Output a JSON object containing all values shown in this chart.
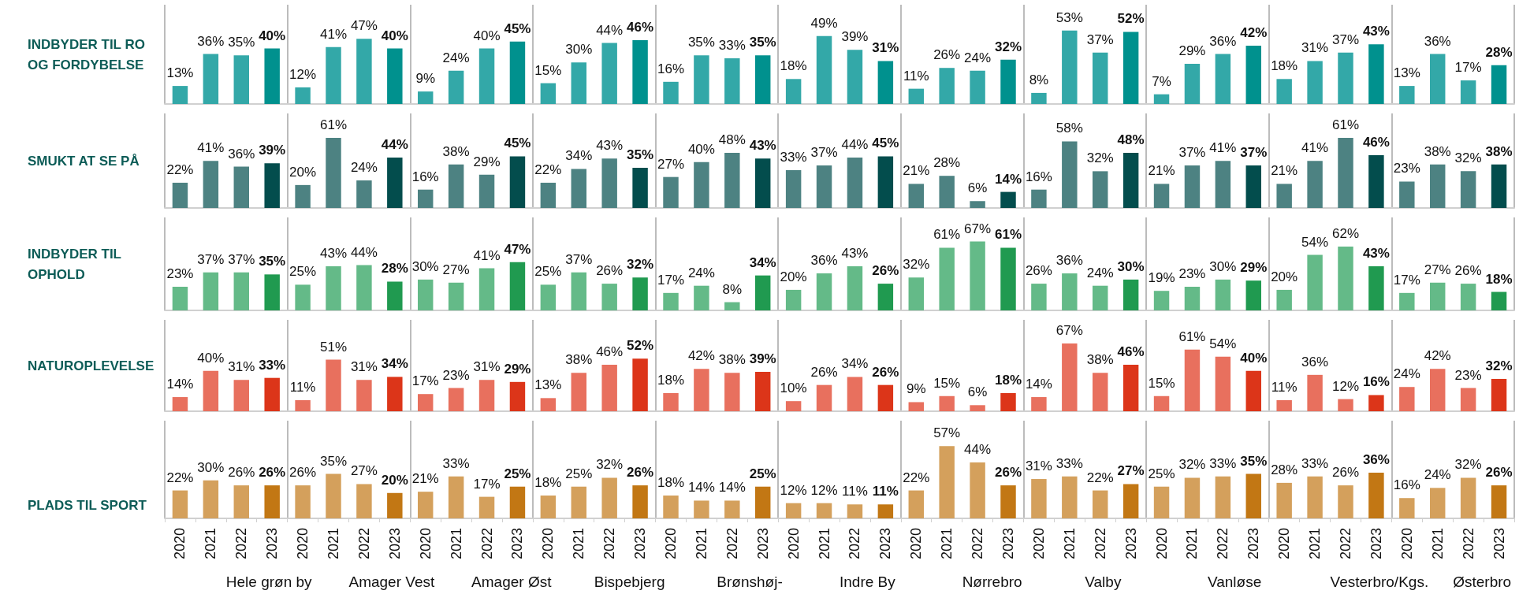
{
  "chart_data": [
    {
      "type": "bar",
      "title": "INDBYDER TIL RO OG FORDYBELSE",
      "tick_labels": false,
      "grid": "x",
      "categories": [
        "2020",
        "2021",
        "2022",
        "2023",
        "2020",
        "2021",
        "2022",
        "2023",
        "2020",
        "2021",
        "2022",
        "2023",
        "2020",
        "2021",
        "2022",
        "2023",
        "2020",
        "2021",
        "2022",
        "2023",
        "2020",
        "2021",
        "2022",
        "2023",
        "2020",
        "2021",
        "2022",
        "2023",
        "2020",
        "2021",
        "2022",
        "2023",
        "2020",
        "2021",
        "2022",
        "2023",
        "2020",
        "2021",
        "2022",
        "2023",
        "2020",
        "2021",
        "2022",
        "2023"
      ],
      "values": [
        13,
        36,
        35,
        40,
        12,
        41,
        47,
        40,
        9,
        24,
        40,
        45,
        15,
        30,
        44,
        46,
        16,
        35,
        33,
        35,
        18,
        49,
        39,
        31,
        11,
        26,
        24,
        32,
        8,
        53,
        37,
        52,
        7,
        29,
        36,
        42,
        18,
        31,
        37,
        43,
        13,
        36,
        17,
        28
      ],
      "value_labels": [
        "13%",
        "36%",
        "35%",
        "40%",
        "12%",
        "41%",
        "47%",
        "40%",
        "9%",
        "24%",
        "40%",
        "45%",
        "15%",
        "30%",
        "44%",
        "46%",
        "16%",
        "35%",
        "33%",
        "35%",
        "18%",
        "49%",
        "39%",
        "31%",
        "11%",
        "26%",
        "24%",
        "32%",
        "8%",
        "53%",
        "37%",
        "52%",
        "7%",
        "29%",
        "36%",
        "42%",
        "18%",
        "31%",
        "37%",
        "43%",
        "13%",
        "36%",
        "17%",
        "28%"
      ],
      "colors": [
        "#33a8a8",
        "#33a8a8",
        "#33a8a8",
        "#00918e",
        "#33a8a8",
        "#33a8a8",
        "#33a8a8",
        "#00918e",
        "#33a8a8",
        "#33a8a8",
        "#33a8a8",
        "#00918e",
        "#33a8a8",
        "#33a8a8",
        "#33a8a8",
        "#00918e",
        "#33a8a8",
        "#33a8a8",
        "#33a8a8",
        "#00918e",
        "#33a8a8",
        "#33a8a8",
        "#33a8a8",
        "#00918e",
        "#33a8a8",
        "#33a8a8",
        "#33a8a8",
        "#00918e",
        "#33a8a8",
        "#33a8a8",
        "#33a8a8",
        "#00918e",
        "#33a8a8",
        "#33a8a8",
        "#33a8a8",
        "#00918e",
        "#33a8a8",
        "#33a8a8",
        "#33a8a8",
        "#00918e",
        "#33a8a8",
        "#33a8a8",
        "#33a8a8",
        "#00918e"
      ]
    },
    {
      "type": "bar",
      "title": "SMUKT AT SE PÅ",
      "tick_labels": false,
      "grid": "x",
      "categories": [
        "2020",
        "2021",
        "2022",
        "2023",
        "2020",
        "2021",
        "2022",
        "2023",
        "2020",
        "2021",
        "2022",
        "2023",
        "2020",
        "2021",
        "2022",
        "2023",
        "2020",
        "2021",
        "2022",
        "2023",
        "2020",
        "2021",
        "2022",
        "2023",
        "2020",
        "2021",
        "2022",
        "2023",
        "2020",
        "2021",
        "2022",
        "2023",
        "2020",
        "2021",
        "2022",
        "2023",
        "2020",
        "2021",
        "2022",
        "2023",
        "2020",
        "2021",
        "2022",
        "2023"
      ],
      "values": [
        22,
        41,
        36,
        39,
        20,
        61,
        24,
        44,
        16,
        38,
        29,
        45,
        22,
        34,
        43,
        35,
        27,
        40,
        48,
        43,
        33,
        37,
        44,
        45,
        21,
        28,
        6,
        14,
        16,
        58,
        32,
        48,
        21,
        37,
        41,
        37,
        21,
        41,
        61,
        46,
        23,
        38,
        32,
        38
      ],
      "value_labels": [
        "22%",
        "41%",
        "36%",
        "39%",
        "20%",
        "61%",
        "24%",
        "44%",
        "16%",
        "38%",
        "29%",
        "45%",
        "22%",
        "34%",
        "43%",
        "35%",
        "27%",
        "40%",
        "48%",
        "43%",
        "33%",
        "37%",
        "44%",
        "45%",
        "21%",
        "28%",
        "6%",
        "14%",
        "16%",
        "58%",
        "32%",
        "48%",
        "21%",
        "37%",
        "41%",
        "37%",
        "21%",
        "41%",
        "61%",
        "46%",
        "23%",
        "38%",
        "32%",
        "38%"
      ],
      "colors": [
        "#4d8282",
        "#4d8282",
        "#4d8282",
        "#034d4d",
        "#4d8282",
        "#4d8282",
        "#4d8282",
        "#034d4d",
        "#4d8282",
        "#4d8282",
        "#4d8282",
        "#034d4d",
        "#4d8282",
        "#4d8282",
        "#4d8282",
        "#034d4d",
        "#4d8282",
        "#4d8282",
        "#4d8282",
        "#034d4d",
        "#4d8282",
        "#4d8282",
        "#4d8282",
        "#034d4d",
        "#4d8282",
        "#4d8282",
        "#4d8282",
        "#034d4d",
        "#4d8282",
        "#4d8282",
        "#4d8282",
        "#034d4d",
        "#4d8282",
        "#4d8282",
        "#4d8282",
        "#034d4d",
        "#4d8282",
        "#4d8282",
        "#4d8282",
        "#034d4d",
        "#4d8282",
        "#4d8282",
        "#4d8282",
        "#034d4d"
      ]
    },
    {
      "type": "bar",
      "title": "INDBYDER TIL OPHOLD",
      "tick_labels": false,
      "grid": "x",
      "categories": [
        "2020",
        "2021",
        "2022",
        "2023",
        "2020",
        "2021",
        "2022",
        "2023",
        "2020",
        "2021",
        "2022",
        "2023",
        "2020",
        "2021",
        "2022",
        "2023",
        "2020",
        "2021",
        "2022",
        "2023",
        "2020",
        "2021",
        "2022",
        "2023",
        "2020",
        "2021",
        "2022",
        "2023",
        "2020",
        "2021",
        "2022",
        "2023",
        "2020",
        "2021",
        "2022",
        "2023",
        "2020",
        "2021",
        "2022",
        "2023",
        "2020",
        "2021",
        "2022",
        "2023"
      ],
      "values": [
        23,
        37,
        37,
        35,
        25,
        43,
        44,
        28,
        30,
        27,
        41,
        47,
        25,
        37,
        26,
        32,
        17,
        24,
        8,
        34,
        20,
        36,
        43,
        26,
        32,
        61,
        67,
        61,
        26,
        36,
        24,
        30,
        19,
        23,
        30,
        29,
        20,
        54,
        62,
        43,
        17,
        27,
        26,
        18
      ],
      "value_labels": [
        "23%",
        "37%",
        "37%",
        "35%",
        "25%",
        "43%",
        "44%",
        "28%",
        "30%",
        "27%",
        "41%",
        "47%",
        "25%",
        "37%",
        "26%",
        "32%",
        "17%",
        "24%",
        "8%",
        "34%",
        "20%",
        "36%",
        "43%",
        "26%",
        "32%",
        "61%",
        "67%",
        "61%",
        "26%",
        "36%",
        "24%",
        "30%",
        "19%",
        "23%",
        "30%",
        "29%",
        "20%",
        "54%",
        "62%",
        "43%",
        "17%",
        "27%",
        "26%",
        "18%"
      ],
      "colors": [
        "#64ba88",
        "#64ba88",
        "#64ba88",
        "#209a50",
        "#64ba88",
        "#64ba88",
        "#64ba88",
        "#209a50",
        "#64ba88",
        "#64ba88",
        "#64ba88",
        "#209a50",
        "#64ba88",
        "#64ba88",
        "#64ba88",
        "#209a50",
        "#64ba88",
        "#64ba88",
        "#64ba88",
        "#209a50",
        "#64ba88",
        "#64ba88",
        "#64ba88",
        "#209a50",
        "#64ba88",
        "#64ba88",
        "#64ba88",
        "#209a50",
        "#64ba88",
        "#64ba88",
        "#64ba88",
        "#209a50",
        "#64ba88",
        "#64ba88",
        "#64ba88",
        "#209a50",
        "#64ba88",
        "#64ba88",
        "#64ba88",
        "#209a50",
        "#64ba88",
        "#64ba88",
        "#64ba88",
        "#209a50"
      ]
    },
    {
      "type": "bar",
      "title": "NATUROPLEVELSE",
      "tick_labels": false,
      "grid": "x",
      "categories": [
        "2020",
        "2021",
        "2022",
        "2023",
        "2020",
        "2021",
        "2022",
        "2023",
        "2020",
        "2021",
        "2022",
        "2023",
        "2020",
        "2021",
        "2022",
        "2023",
        "2020",
        "2021",
        "2022",
        "2023",
        "2020",
        "2021",
        "2022",
        "2023",
        "2020",
        "2021",
        "2022",
        "2023",
        "2020",
        "2021",
        "2022",
        "2023",
        "2020",
        "2021",
        "2022",
        "2023",
        "2020",
        "2021",
        "2022",
        "2023",
        "2020",
        "2021",
        "2022",
        "2023"
      ],
      "values": [
        14,
        40,
        31,
        33,
        11,
        51,
        31,
        34,
        17,
        23,
        31,
        29,
        13,
        38,
        46,
        52,
        18,
        42,
        38,
        39,
        10,
        26,
        34,
        26,
        9,
        15,
        6,
        18,
        14,
        67,
        38,
        46,
        15,
        61,
        54,
        40,
        11,
        36,
        12,
        16,
        24,
        42,
        23,
        32
      ],
      "value_labels": [
        "14%",
        "40%",
        "31%",
        "33%",
        "11%",
        "51%",
        "31%",
        "34%",
        "17%",
        "23%",
        "31%",
        "29%",
        "13%",
        "38%",
        "46%",
        "52%",
        "18%",
        "42%",
        "38%",
        "39%",
        "10%",
        "26%",
        "34%",
        "26%",
        "9%",
        "15%",
        "6%",
        "18%",
        "14%",
        "67%",
        "38%",
        "46%",
        "15%",
        "61%",
        "54%",
        "40%",
        "11%",
        "36%",
        "12%",
        "16%",
        "24%",
        "42%",
        "23%",
        "32%"
      ],
      "colors": [
        "#e8705e",
        "#e8705e",
        "#e8705e",
        "#dc3519",
        "#e8705e",
        "#e8705e",
        "#e8705e",
        "#dc3519",
        "#e8705e",
        "#e8705e",
        "#e8705e",
        "#dc3519",
        "#e8705e",
        "#e8705e",
        "#e8705e",
        "#dc3519",
        "#e8705e",
        "#e8705e",
        "#e8705e",
        "#dc3519",
        "#e8705e",
        "#e8705e",
        "#e8705e",
        "#dc3519",
        "#e8705e",
        "#e8705e",
        "#e8705e",
        "#dc3519",
        "#e8705e",
        "#e8705e",
        "#e8705e",
        "#dc3519",
        "#e8705e",
        "#e8705e",
        "#e8705e",
        "#dc3519",
        "#e8705e",
        "#e8705e",
        "#e8705e",
        "#dc3519",
        "#e8705e",
        "#e8705e",
        "#e8705e",
        "#dc3519"
      ]
    },
    {
      "type": "bar",
      "title": "PLADS TIL SPORT",
      "grid": "x",
      "categories": [
        "2020",
        "2021",
        "2022",
        "2023",
        "2020",
        "2021",
        "2022",
        "2023",
        "2020",
        "2021",
        "2022",
        "2023",
        "2020",
        "2021",
        "2022",
        "2023",
        "2020",
        "2021",
        "2022",
        "2023",
        "2020",
        "2021",
        "2022",
        "2023",
        "2020",
        "2021",
        "2022",
        "2023",
        "2020",
        "2021",
        "2022",
        "2023",
        "2020",
        "2021",
        "2022",
        "2023",
        "2020",
        "2021",
        "2022",
        "2023",
        "2020",
        "2021",
        "2022",
        "2023"
      ],
      "values": [
        22,
        30,
        26,
        26,
        26,
        35,
        27,
        20,
        21,
        33,
        17,
        25,
        18,
        25,
        32,
        26,
        18,
        14,
        14,
        25,
        12,
        12,
        11,
        11,
        22,
        57,
        44,
        26,
        31,
        33,
        22,
        27,
        25,
        32,
        33,
        35,
        28,
        33,
        26,
        36,
        16,
        24,
        32,
        26
      ],
      "value_labels": [
        "22%",
        "30%",
        "26%",
        "26%",
        "26%",
        "35%",
        "27%",
        "20%",
        "21%",
        "33%",
        "17%",
        "25%",
        "18%",
        "25%",
        "32%",
        "26%",
        "18%",
        "14%",
        "14%",
        "25%",
        "12%",
        "12%",
        "11%",
        "11%",
        "22%",
        "57%",
        "44%",
        "26%",
        "31%",
        "33%",
        "22%",
        "27%",
        "25%",
        "32%",
        "33%",
        "35%",
        "28%",
        "33%",
        "26%",
        "36%",
        "16%",
        "24%",
        "32%",
        "26%"
      ],
      "colors": [
        "#d4a05c",
        "#d4a05c",
        "#d4a05c",
        "#c27714",
        "#d4a05c",
        "#d4a05c",
        "#d4a05c",
        "#c27714",
        "#d4a05c",
        "#d4a05c",
        "#d4a05c",
        "#c27714",
        "#d4a05c",
        "#d4a05c",
        "#d4a05c",
        "#c27714",
        "#d4a05c",
        "#d4a05c",
        "#d4a05c",
        "#c27714",
        "#d4a05c",
        "#d4a05c",
        "#d4a05c",
        "#c27714",
        "#d4a05c",
        "#d4a05c",
        "#d4a05c",
        "#c27714",
        "#d4a05c",
        "#d4a05c",
        "#d4a05c",
        "#c27714",
        "#d4a05c",
        "#d4a05c",
        "#d4a05c",
        "#c27714",
        "#d4a05c",
        "#d4a05c",
        "#d4a05c",
        "#c27714",
        "#d4a05c",
        "#d4a05c",
        "#d4a05c",
        "#c27714"
      ],
      "annotations": [
        "Hele grøn by",
        "Amager Vest",
        "Amager Øst",
        "Bispebjerg",
        "Brønshøj-",
        "Indre By",
        "Nørrebro",
        "Valby",
        "Vanløse",
        "Vesterbro/Kgs.",
        "Østerbro"
      ]
    }
  ]
}
